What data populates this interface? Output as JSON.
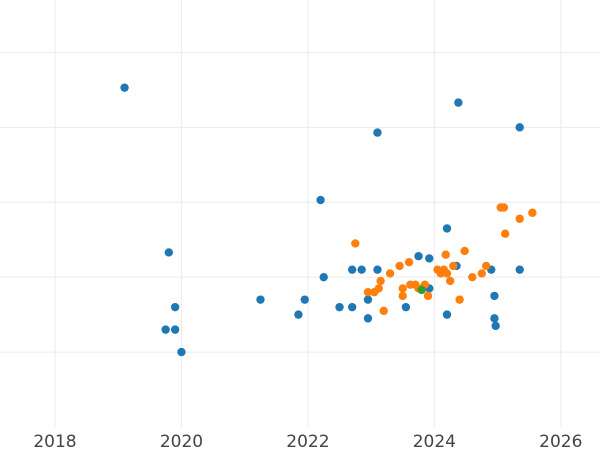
{
  "chart_data": {
    "type": "scatter",
    "title": "",
    "xlabel": "",
    "ylabel": "",
    "grid": true,
    "x_ticks": [
      "2018",
      "2020",
      "2022",
      "2024",
      "2026"
    ],
    "x_tick_values": [
      2018,
      2020,
      2022,
      2024,
      2026
    ],
    "y_grid_values": [
      1,
      2,
      3,
      4,
      5
    ],
    "xlim": [
      2017.13,
      2026.62
    ],
    "ylim": [
      0,
      5.7
    ],
    "colors": [
      "#1f77b4",
      "#ff7f0e",
      "#2ca02c"
    ],
    "series": [
      {
        "color": "#1f77b4",
        "points": [
          [
            2019.1,
            4.53
          ],
          [
            2019.8,
            2.33
          ],
          [
            2019.9,
            1.6
          ],
          [
            2019.75,
            1.3
          ],
          [
            2019.9,
            1.3
          ],
          [
            2020.0,
            1.0
          ],
          [
            2021.25,
            1.7
          ],
          [
            2021.85,
            1.5
          ],
          [
            2021.95,
            1.7
          ],
          [
            2022.2,
            3.03
          ],
          [
            2022.25,
            2.0
          ],
          [
            2022.5,
            1.6
          ],
          [
            2022.7,
            1.6
          ],
          [
            2022.7,
            2.1
          ],
          [
            2022.85,
            2.1
          ],
          [
            2022.95,
            1.45
          ],
          [
            2022.95,
            1.7
          ],
          [
            2023.1,
            2.1
          ],
          [
            2023.1,
            3.93
          ],
          [
            2023.55,
            1.6
          ],
          [
            2023.75,
            2.28
          ],
          [
            2023.92,
            1.85
          ],
          [
            2023.92,
            2.25
          ],
          [
            2024.2,
            1.5
          ],
          [
            2024.2,
            2.65
          ],
          [
            2024.35,
            2.15
          ],
          [
            2024.38,
            4.33
          ],
          [
            2024.9,
            2.1
          ],
          [
            2024.95,
            1.75
          ],
          [
            2024.95,
            1.45
          ],
          [
            2024.97,
            1.35
          ],
          [
            2025.35,
            4.0
          ],
          [
            2025.35,
            2.1
          ]
        ]
      },
      {
        "color": "#ff7f0e",
        "points": [
          [
            2022.75,
            2.45
          ],
          [
            2022.95,
            1.8
          ],
          [
            2023.05,
            1.8
          ],
          [
            2023.12,
            1.85
          ],
          [
            2023.15,
            1.95
          ],
          [
            2023.2,
            1.55
          ],
          [
            2023.3,
            2.05
          ],
          [
            2023.45,
            2.15
          ],
          [
            2023.5,
            1.75
          ],
          [
            2023.5,
            1.85
          ],
          [
            2023.6,
            2.2
          ],
          [
            2023.62,
            1.9
          ],
          [
            2023.7,
            1.9
          ],
          [
            2023.75,
            1.85
          ],
          [
            2023.85,
            1.9
          ],
          [
            2023.9,
            1.75
          ],
          [
            2024.05,
            2.1
          ],
          [
            2024.1,
            2.05
          ],
          [
            2024.15,
            2.1
          ],
          [
            2024.18,
            2.3
          ],
          [
            2024.2,
            2.05
          ],
          [
            2024.25,
            1.95
          ],
          [
            2024.3,
            2.15
          ],
          [
            2024.4,
            1.7
          ],
          [
            2024.48,
            2.35
          ],
          [
            2024.6,
            2.0
          ],
          [
            2024.75,
            2.05
          ],
          [
            2024.82,
            2.15
          ],
          [
            2025.05,
            2.93
          ],
          [
            2025.1,
            2.93
          ],
          [
            2025.12,
            2.58
          ],
          [
            2025.35,
            2.78
          ],
          [
            2025.55,
            2.86
          ]
        ]
      },
      {
        "color": "#2ca02c",
        "points": [
          [
            2023.8,
            1.83
          ]
        ]
      }
    ]
  }
}
